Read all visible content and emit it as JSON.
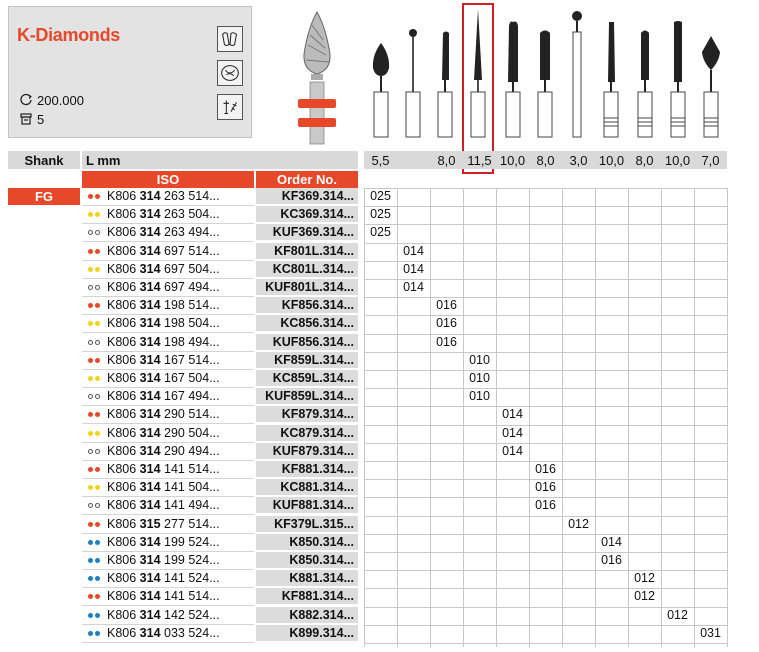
{
  "product": {
    "title": "K-Diamonds",
    "speed": "200.000",
    "pack": "5"
  },
  "icons": [
    "crown-prep-icon",
    "inlay-prep-icon",
    "sterilization-icon",
    "speed-icon",
    "pack-icon"
  ],
  "colors": {
    "accent": "#e8482a",
    "highlight_border": "#cf1f24",
    "dot_red": "#e8482a",
    "dot_yellow": "#f2d21b",
    "dot_blue": "#1f7fc4",
    "dot_white": "#ffffff"
  },
  "headers": {
    "shank": "Shank",
    "lmm": "L mm",
    "iso": "ISO",
    "order": "Order No.",
    "fg": "FG"
  },
  "lengths": [
    "5,5",
    "",
    "8,0",
    "11,5",
    "10,0",
    "8,0",
    "3,0",
    "10,0",
    "8,0",
    "10,0",
    "7,0"
  ],
  "highlighted_column": 3,
  "rows": [
    {
      "dots": "red",
      "iso_a": "K806",
      "iso_b": "314",
      "iso_c": "263 514...",
      "order": "KF369.314...",
      "col": 0,
      "size": "025"
    },
    {
      "dots": "yellow",
      "iso_a": "K806",
      "iso_b": "314",
      "iso_c": "263 504...",
      "order": "KC369.314...",
      "col": 0,
      "size": "025"
    },
    {
      "dots": "white",
      "iso_a": "K806",
      "iso_b": "314",
      "iso_c": "263 494...",
      "order": "KUF369.314...",
      "col": 0,
      "size": "025"
    },
    {
      "dots": "red",
      "iso_a": "K806",
      "iso_b": "314",
      "iso_c": "697 514...",
      "order": "KF801L.314...",
      "col": 1,
      "size": "014"
    },
    {
      "dots": "yellow",
      "iso_a": "K806",
      "iso_b": "314",
      "iso_c": "697 504...",
      "order": "KC801L.314...",
      "col": 1,
      "size": "014"
    },
    {
      "dots": "white",
      "iso_a": "K806",
      "iso_b": "314",
      "iso_c": "697 494...",
      "order": "KUF801L.314...",
      "col": 1,
      "size": "014"
    },
    {
      "dots": "red",
      "iso_a": "K806",
      "iso_b": "314",
      "iso_c": "198 514...",
      "order": "KF856.314...",
      "col": 2,
      "size": "016"
    },
    {
      "dots": "yellow",
      "iso_a": "K806",
      "iso_b": "314",
      "iso_c": "198 504...",
      "order": "KC856.314...",
      "col": 2,
      "size": "016"
    },
    {
      "dots": "white",
      "iso_a": "K806",
      "iso_b": "314",
      "iso_c": "198 494...",
      "order": "KUF856.314...",
      "col": 2,
      "size": "016"
    },
    {
      "dots": "red",
      "iso_a": "K806",
      "iso_b": "314",
      "iso_c": "167 514...",
      "order": "KF859L.314...",
      "col": 3,
      "size": "010"
    },
    {
      "dots": "yellow",
      "iso_a": "K806",
      "iso_b": "314",
      "iso_c": "167 504...",
      "order": "KC859L.314...",
      "col": 3,
      "size": "010"
    },
    {
      "dots": "white",
      "iso_a": "K806",
      "iso_b": "314",
      "iso_c": "167 494...",
      "order": "KUF859L.314...",
      "col": 3,
      "size": "010"
    },
    {
      "dots": "red",
      "iso_a": "K806",
      "iso_b": "314",
      "iso_c": "290 514...",
      "order": "KF879.314...",
      "col": 4,
      "size": "014"
    },
    {
      "dots": "yellow",
      "iso_a": "K806",
      "iso_b": "314",
      "iso_c": "290 504...",
      "order": "KC879.314...",
      "col": 4,
      "size": "014"
    },
    {
      "dots": "white",
      "iso_a": "K806",
      "iso_b": "314",
      "iso_c": "290 494...",
      "order": "KUF879.314...",
      "col": 4,
      "size": "014"
    },
    {
      "dots": "red",
      "iso_a": "K806",
      "iso_b": "314",
      "iso_c": "141 514...",
      "order": "KF881.314...",
      "col": 5,
      "size": "016"
    },
    {
      "dots": "yellow",
      "iso_a": "K806",
      "iso_b": "314",
      "iso_c": "141 504...",
      "order": "KC881.314...",
      "col": 5,
      "size": "016"
    },
    {
      "dots": "white",
      "iso_a": "K806",
      "iso_b": "314",
      "iso_c": "141 494...",
      "order": "KUF881.314...",
      "col": 5,
      "size": "016"
    },
    {
      "dots": "red",
      "iso_a": "K806",
      "iso_b": "315",
      "iso_c": "277 514...",
      "order": "KF379L.315...",
      "col": 6,
      "size": "012"
    },
    {
      "dots": "blue",
      "iso_a": "K806",
      "iso_b": "314",
      "iso_c": "199 524...",
      "order": "K850.314...",
      "col": 7,
      "size": "014"
    },
    {
      "dots": "blue",
      "iso_a": "K806",
      "iso_b": "314",
      "iso_c": "199 524...",
      "order": "K850.314...",
      "col": 7,
      "size": "016"
    },
    {
      "dots": "blue",
      "iso_a": "K806",
      "iso_b": "314",
      "iso_c": "141 524...",
      "order": "K881.314...",
      "col": 8,
      "size": "012"
    },
    {
      "dots": "red",
      "iso_a": "K806",
      "iso_b": "314",
      "iso_c": "141 514...",
      "order": "KF881.314...",
      "col": 8,
      "size": "012"
    },
    {
      "dots": "blue",
      "iso_a": "K806",
      "iso_b": "314",
      "iso_c": "142 524...",
      "order": "K882.314...",
      "col": 9,
      "size": "012"
    },
    {
      "dots": "blue",
      "iso_a": "K806",
      "iso_b": "314",
      "iso_c": "033 524...",
      "order": "K899.314...",
      "col": 10,
      "size": "031"
    }
  ]
}
